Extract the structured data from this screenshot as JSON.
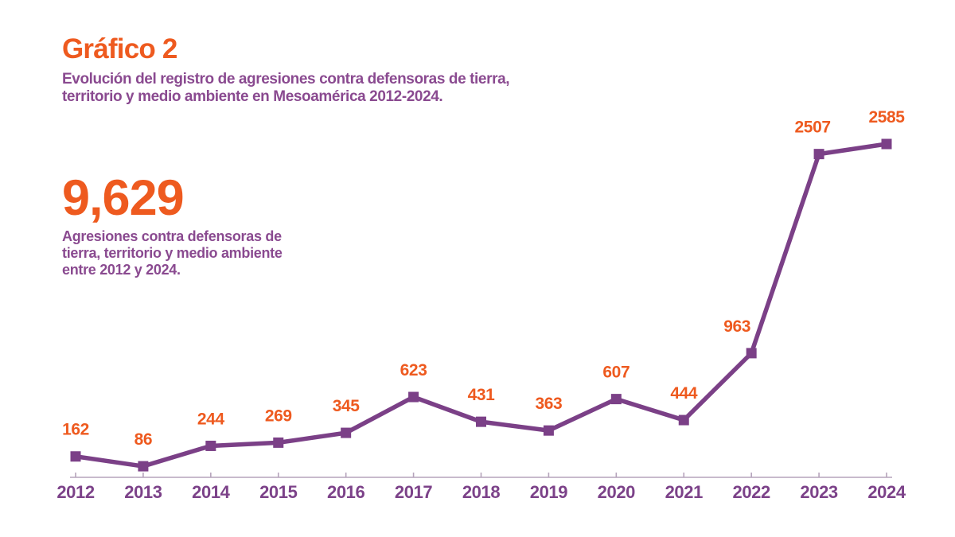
{
  "header": {
    "title": "Gráfico 2",
    "subtitle_lines": [
      "Evolución del registro de agresiones contra defensoras de tierra,",
      "territorio y medio ambiente en Mesoamérica 2012-2024."
    ]
  },
  "stat": {
    "value": "9,629",
    "description_lines": [
      "Agresiones contra defensoras de",
      "tierra, territorio y medio ambiente",
      "entre 2012 y 2024."
    ]
  },
  "chart_data": {
    "type": "line",
    "categories": [
      "2012",
      "2013",
      "2014",
      "2015",
      "2016",
      "2017",
      "2018",
      "2019",
      "2020",
      "2021",
      "2022",
      "2023",
      "2024"
    ],
    "values": [
      162,
      86,
      244,
      269,
      345,
      623,
      431,
      363,
      607,
      444,
      963,
      2507,
      2585
    ],
    "title": "Evolución del registro de agresiones contra defensoras de tierra, territorio y medio ambiente en Mesoamérica 2012-2024.",
    "xlabel": "",
    "ylabel": "",
    "ylim": [
      0,
      2585
    ],
    "grid": false,
    "legend": false,
    "marker": "square",
    "data_labels_visible": true,
    "total": "9,629"
  },
  "colors": {
    "orange": "#ee5a1f",
    "text_purple": "#8a4a90",
    "line_purple": "#7b4087",
    "year_purple": "#7c4289",
    "axis": "#b5a3bb",
    "background": "#ffffff"
  }
}
